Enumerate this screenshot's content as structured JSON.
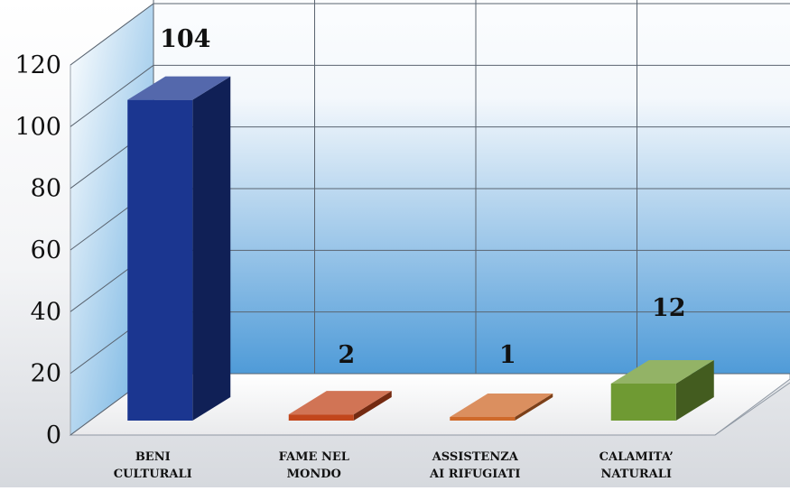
{
  "chart_data": {
    "type": "bar",
    "categories": [
      [
        "BENI",
        "CULTURALI"
      ],
      [
        "FAME NEL",
        "MONDO"
      ],
      [
        "ASSISTENZA",
        "AI RIFUGIATI"
      ],
      [
        "CALAMITA’",
        "NATURALI"
      ]
    ],
    "values": [
      104,
      2,
      1,
      12
    ],
    "value_labels": [
      "104",
      "2",
      "1",
      "12"
    ],
    "yticks": [
      "0",
      "20",
      "40",
      "60",
      "80",
      "100",
      "120"
    ],
    "ylim": [
      0,
      120
    ],
    "grid": true,
    "three_d": true,
    "colors": [
      "#1b3690",
      "#c2461c",
      "#cf6a2a",
      "#6f9a33"
    ],
    "back_wall_gradient": [
      "#ffffff",
      "#4f9bd8"
    ]
  }
}
